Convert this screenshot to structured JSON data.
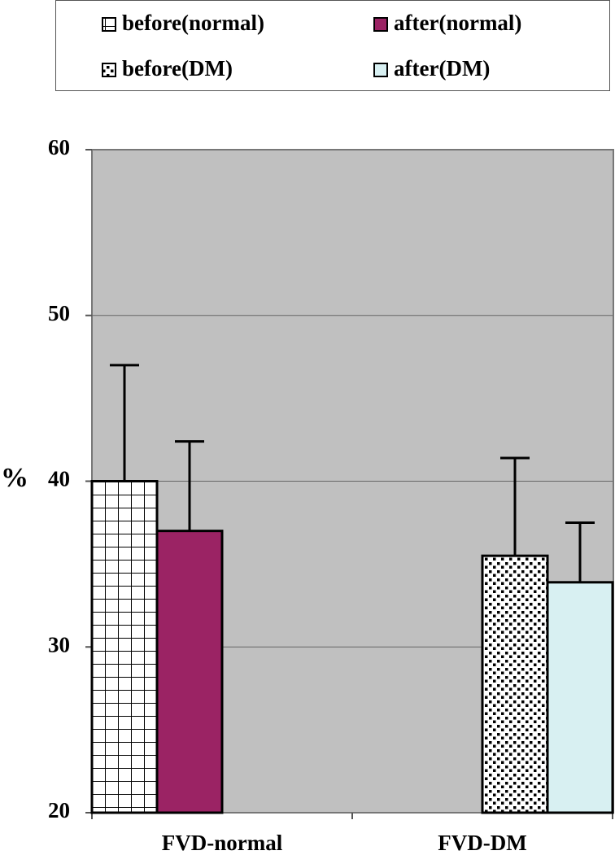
{
  "chart_data": {
    "type": "bar",
    "y_label": "%",
    "categories": [
      "FVD-normal",
      "FVD-DM"
    ],
    "series": [
      {
        "name": "before(normal)",
        "color": "#ffffff",
        "pattern": "grid",
        "values": [
          40,
          null
        ],
        "errors": [
          7,
          null
        ]
      },
      {
        "name": "after(normal)",
        "color": "#9b2364",
        "values": [
          37,
          null
        ],
        "errors": [
          5.4,
          null
        ]
      },
      {
        "name": "before(DM)",
        "color": "#ffffff",
        "pattern": "dots",
        "values": [
          null,
          35.5
        ],
        "errors": [
          null,
          5.9
        ]
      },
      {
        "name": "after(DM)",
        "color": "#d8f0f2",
        "values": [
          null,
          33.9
        ],
        "errors": [
          null,
          3.6
        ]
      }
    ],
    "ylim": [
      20,
      60
    ],
    "yticks": [
      20,
      30,
      40,
      50,
      60
    ],
    "grid": true,
    "plot_background": "#c0c0c0"
  }
}
